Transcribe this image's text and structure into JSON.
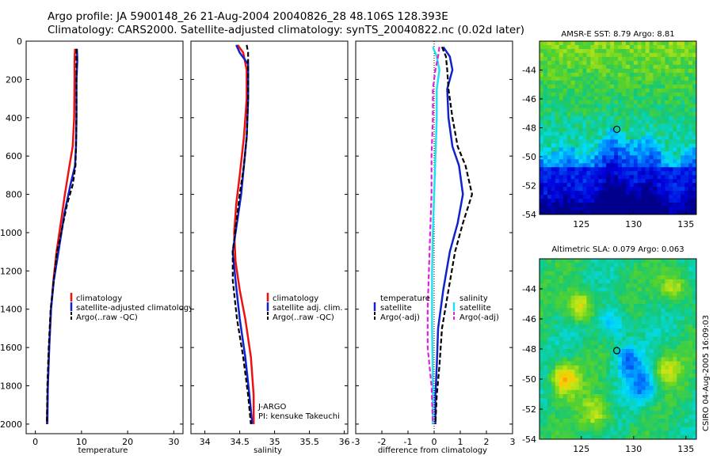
{
  "header": {
    "line1": "Argo profile: JA 5900148_26 21-Aug-2004 20040826_28 48.106S 128.393E",
    "line2": "Climatology: CARS2000. Satellite-adjusted climatology: synTS_20040822.nc (0.02d later)"
  },
  "stamp": "CSIRO 04-Aug-2005 16:09:03",
  "colors": {
    "climatology": "#ee1111",
    "satellite": "#1122cc",
    "argo": "#000000",
    "temp_satellite": "#1122cc",
    "sal_satellite": "#22e0f0",
    "sal_argo": "#dd22dd"
  },
  "chart_data": [
    {
      "type": "line",
      "xlabel": "temperature",
      "xticks": [
        "0",
        "10",
        "20",
        "30"
      ],
      "yticks": [
        "0",
        "200",
        "400",
        "600",
        "800",
        "1000",
        "1200",
        "1400",
        "1600",
        "1800",
        "2000"
      ],
      "xlim": [
        -2,
        32
      ],
      "ylim": [
        2050,
        0
      ],
      "legend": [
        "climatology",
        "satellite-adjusted climatology",
        "Argo(..raw -QC)"
      ],
      "series": [
        {
          "name": "climatology",
          "color": "#ee1111",
          "dash": false,
          "points": [
            [
              8.6,
              40
            ],
            [
              8.5,
              100
            ],
            [
              8.5,
              200
            ],
            [
              8.4,
              400
            ],
            [
              8.1,
              550
            ],
            [
              7.4,
              650
            ],
            [
              6.4,
              800
            ],
            [
              5.5,
              950
            ],
            [
              4.6,
              1100
            ],
            [
              3.9,
              1250
            ],
            [
              3.4,
              1400
            ],
            [
              3.0,
              1600
            ],
            [
              2.7,
              1800
            ],
            [
              2.5,
              2000
            ]
          ]
        },
        {
          "name": "satellite-adjusted climatology",
          "color": "#1122cc",
          "dash": false,
          "points": [
            [
              9.0,
              40
            ],
            [
              9.1,
              100
            ],
            [
              8.9,
              200
            ],
            [
              8.9,
              400
            ],
            [
              8.8,
              550
            ],
            [
              8.6,
              650
            ],
            [
              7.6,
              750
            ],
            [
              6.3,
              900
            ],
            [
              5.0,
              1100
            ],
            [
              4.0,
              1250
            ],
            [
              3.4,
              1400
            ],
            [
              3.0,
              1600
            ],
            [
              2.7,
              1800
            ],
            [
              2.6,
              2000
            ]
          ]
        },
        {
          "name": "Argo(..raw -QC)",
          "color": "#000000",
          "dash": true,
          "points": [
            [
              8.9,
              40
            ],
            [
              8.9,
              100
            ],
            [
              8.9,
              200
            ],
            [
              8.9,
              400
            ],
            [
              8.8,
              550
            ],
            [
              8.7,
              650
            ],
            [
              8.1,
              750
            ],
            [
              6.9,
              850
            ],
            [
              5.6,
              1000
            ],
            [
              4.7,
              1100
            ],
            [
              4.0,
              1250
            ],
            [
              3.3,
              1400
            ],
            [
              2.9,
              1600
            ],
            [
              2.6,
              1800
            ],
            [
              2.5,
              2000
            ]
          ]
        }
      ]
    },
    {
      "type": "line",
      "xlabel": "salinity",
      "xticks": [
        "34",
        "34.5",
        "35",
        "35.5",
        "36"
      ],
      "yticks": [],
      "xlim": [
        33.8,
        36.05
      ],
      "ylim": [
        2050,
        0
      ],
      "annotation": [
        "J-ARGO",
        "PI: kensuke Takeuchi"
      ],
      "legend": [
        "climatology",
        "satellite adj. clim.",
        "Argo(..raw -QC)"
      ],
      "series": [
        {
          "name": "climatology",
          "color": "#ee1111",
          "dash": false,
          "points": [
            [
              34.47,
              20
            ],
            [
              34.55,
              60
            ],
            [
              34.6,
              150
            ],
            [
              34.6,
              300
            ],
            [
              34.56,
              500
            ],
            [
              34.5,
              700
            ],
            [
              34.45,
              850
            ],
            [
              34.42,
              1000
            ],
            [
              34.44,
              1150
            ],
            [
              34.5,
              1300
            ],
            [
              34.58,
              1450
            ],
            [
              34.66,
              1650
            ],
            [
              34.7,
              1850
            ],
            [
              34.7,
              2000
            ]
          ]
        },
        {
          "name": "satellite adj. clim.",
          "color": "#1122cc",
          "dash": false,
          "points": [
            [
              34.45,
              20
            ],
            [
              34.5,
              60
            ],
            [
              34.62,
              120
            ],
            [
              34.62,
              300
            ],
            [
              34.6,
              500
            ],
            [
              34.56,
              650
            ],
            [
              34.52,
              800
            ],
            [
              34.46,
              950
            ],
            [
              34.4,
              1100
            ],
            [
              34.44,
              1250
            ],
            [
              34.5,
              1450
            ],
            [
              34.58,
              1650
            ],
            [
              34.64,
              1850
            ],
            [
              34.68,
              2000
            ]
          ]
        },
        {
          "name": "Argo(..raw -QC)",
          "color": "#000000",
          "dash": true,
          "points": [
            [
              34.6,
              20
            ],
            [
              34.62,
              60
            ],
            [
              34.62,
              150
            ],
            [
              34.62,
              300
            ],
            [
              34.6,
              500
            ],
            [
              34.56,
              650
            ],
            [
              34.5,
              800
            ],
            [
              34.45,
              950
            ],
            [
              34.4,
              1100
            ],
            [
              34.4,
              1250
            ],
            [
              34.46,
              1450
            ],
            [
              34.55,
              1650
            ],
            [
              34.62,
              1850
            ],
            [
              34.66,
              2000
            ]
          ]
        }
      ]
    },
    {
      "type": "line",
      "xlabel": "difference from climatology",
      "xticks": [
        "-3",
        "-2",
        "-1",
        "0",
        "1",
        "2",
        "3"
      ],
      "yticks": [],
      "xlim": [
        -3,
        3
      ],
      "ylim": [
        2050,
        0
      ],
      "legend_left": [
        "temperature",
        "satellite",
        "Argo(-adj)"
      ],
      "legend_right": [
        "salinity",
        "satellite",
        "Argo(-adj)"
      ],
      "series": [
        {
          "name": "satellite",
          "color": "#1122cc",
          "dash": false,
          "points": [
            [
              0.35,
              30
            ],
            [
              0.6,
              80
            ],
            [
              0.7,
              150
            ],
            [
              0.5,
              250
            ],
            [
              0.55,
              400
            ],
            [
              0.7,
              550
            ],
            [
              0.95,
              650
            ],
            [
              1.1,
              800
            ],
            [
              0.9,
              950
            ],
            [
              0.6,
              1100
            ],
            [
              0.35,
              1300
            ],
            [
              0.15,
              1500
            ],
            [
              0.1,
              1700
            ],
            [
              0.05,
              1850
            ],
            [
              0.05,
              2000
            ]
          ]
        },
        {
          "name": "Argo(-adj)",
          "color": "#000000",
          "dash": true,
          "points": [
            [
              0.3,
              30
            ],
            [
              0.45,
              80
            ],
            [
              0.5,
              150
            ],
            [
              0.55,
              250
            ],
            [
              0.7,
              400
            ],
            [
              0.9,
              550
            ],
            [
              1.2,
              650
            ],
            [
              1.45,
              800
            ],
            [
              1.1,
              950
            ],
            [
              0.8,
              1100
            ],
            [
              0.55,
              1300
            ],
            [
              0.3,
              1500
            ],
            [
              0.2,
              1700
            ],
            [
              0.1,
              1850
            ],
            [
              0.05,
              2000
            ]
          ]
        },
        {
          "name": "satellite",
          "color": "#22e0f0",
          "dash": false,
          "points": [
            [
              -0.05,
              30
            ],
            [
              0.1,
              80
            ],
            [
              0.2,
              150
            ],
            [
              0.1,
              250
            ],
            [
              0.1,
              400
            ],
            [
              0.05,
              600
            ],
            [
              0.0,
              800
            ],
            [
              -0.05,
              1000
            ],
            [
              -0.08,
              1200
            ],
            [
              -0.08,
              1500
            ],
            [
              -0.05,
              1800
            ],
            [
              -0.05,
              2000
            ]
          ]
        },
        {
          "name": "Argo(-adj)",
          "color": "#dd22dd",
          "dash": true,
          "points": [
            [
              0.2,
              30
            ],
            [
              0.15,
              80
            ],
            [
              0.05,
              150
            ],
            [
              -0.05,
              250
            ],
            [
              -0.05,
              400
            ],
            [
              -0.1,
              600
            ],
            [
              -0.1,
              800
            ],
            [
              -0.15,
              1000
            ],
            [
              -0.2,
              1200
            ],
            [
              -0.25,
              1400
            ],
            [
              -0.25,
              1600
            ],
            [
              -0.1,
              1800
            ],
            [
              -0.05,
              2000
            ]
          ]
        }
      ]
    },
    {
      "type": "heatmap",
      "title": "AMSR-E SST: 8.79 Argo: 8.81",
      "xticks": [
        "125",
        "130",
        "135"
      ],
      "yticks": [
        "-44",
        "-46",
        "-48",
        "-50",
        "-52",
        "-54"
      ],
      "xlim": [
        121,
        136
      ],
      "ylim": [
        -54,
        -42
      ],
      "marker": [
        128.393,
        -48.106
      ]
    },
    {
      "type": "heatmap",
      "title": "Altimetric SLA: 0.079 Argo: 0.063",
      "xticks": [
        "125",
        "130",
        "135"
      ],
      "yticks": [
        "-44",
        "-46",
        "-48",
        "-50",
        "-52",
        "-54"
      ],
      "xlim": [
        121,
        136
      ],
      "ylim": [
        -54,
        -42
      ],
      "marker": [
        128.393,
        -48.106
      ]
    }
  ]
}
